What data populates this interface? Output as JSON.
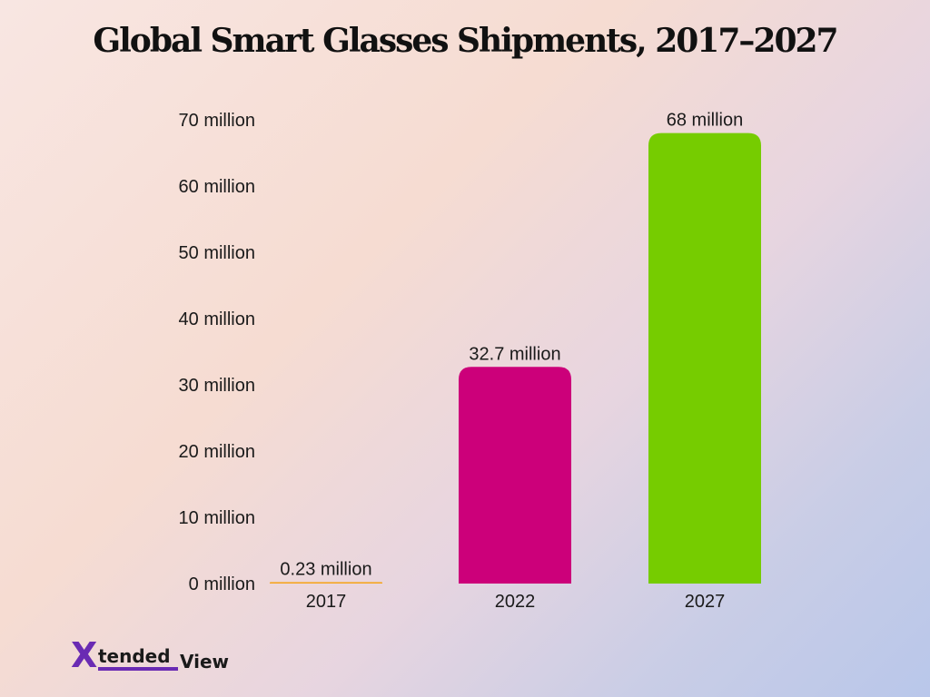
{
  "title": "Global Smart Glasses Shipments, 2017–2027",
  "logo": {
    "mark": "X",
    "word1": "tended",
    "word2": "View"
  },
  "colors": {
    "bar_2017": "#f5a623",
    "bar_2022": "#cc007a",
    "bar_2027": "#76cc00"
  },
  "chart_data": {
    "type": "bar",
    "title": "Global Smart Glasses Shipments, 2017–2027",
    "categories": [
      "2017",
      "2022",
      "2027"
    ],
    "values": [
      0.23,
      32.7,
      68
    ],
    "data_labels": [
      "0.23 million",
      "32.7 million",
      "68 million"
    ],
    "ylim": [
      0,
      70
    ],
    "yticks": [
      0,
      10,
      20,
      30,
      40,
      50,
      60,
      70
    ],
    "ytick_labels": [
      "0 million",
      "10 million",
      "20 million",
      "30 million",
      "40 million",
      "50 million",
      "60 million",
      "70 million"
    ],
    "xlabel": "",
    "ylabel": "",
    "grid": false,
    "legend": "none"
  }
}
